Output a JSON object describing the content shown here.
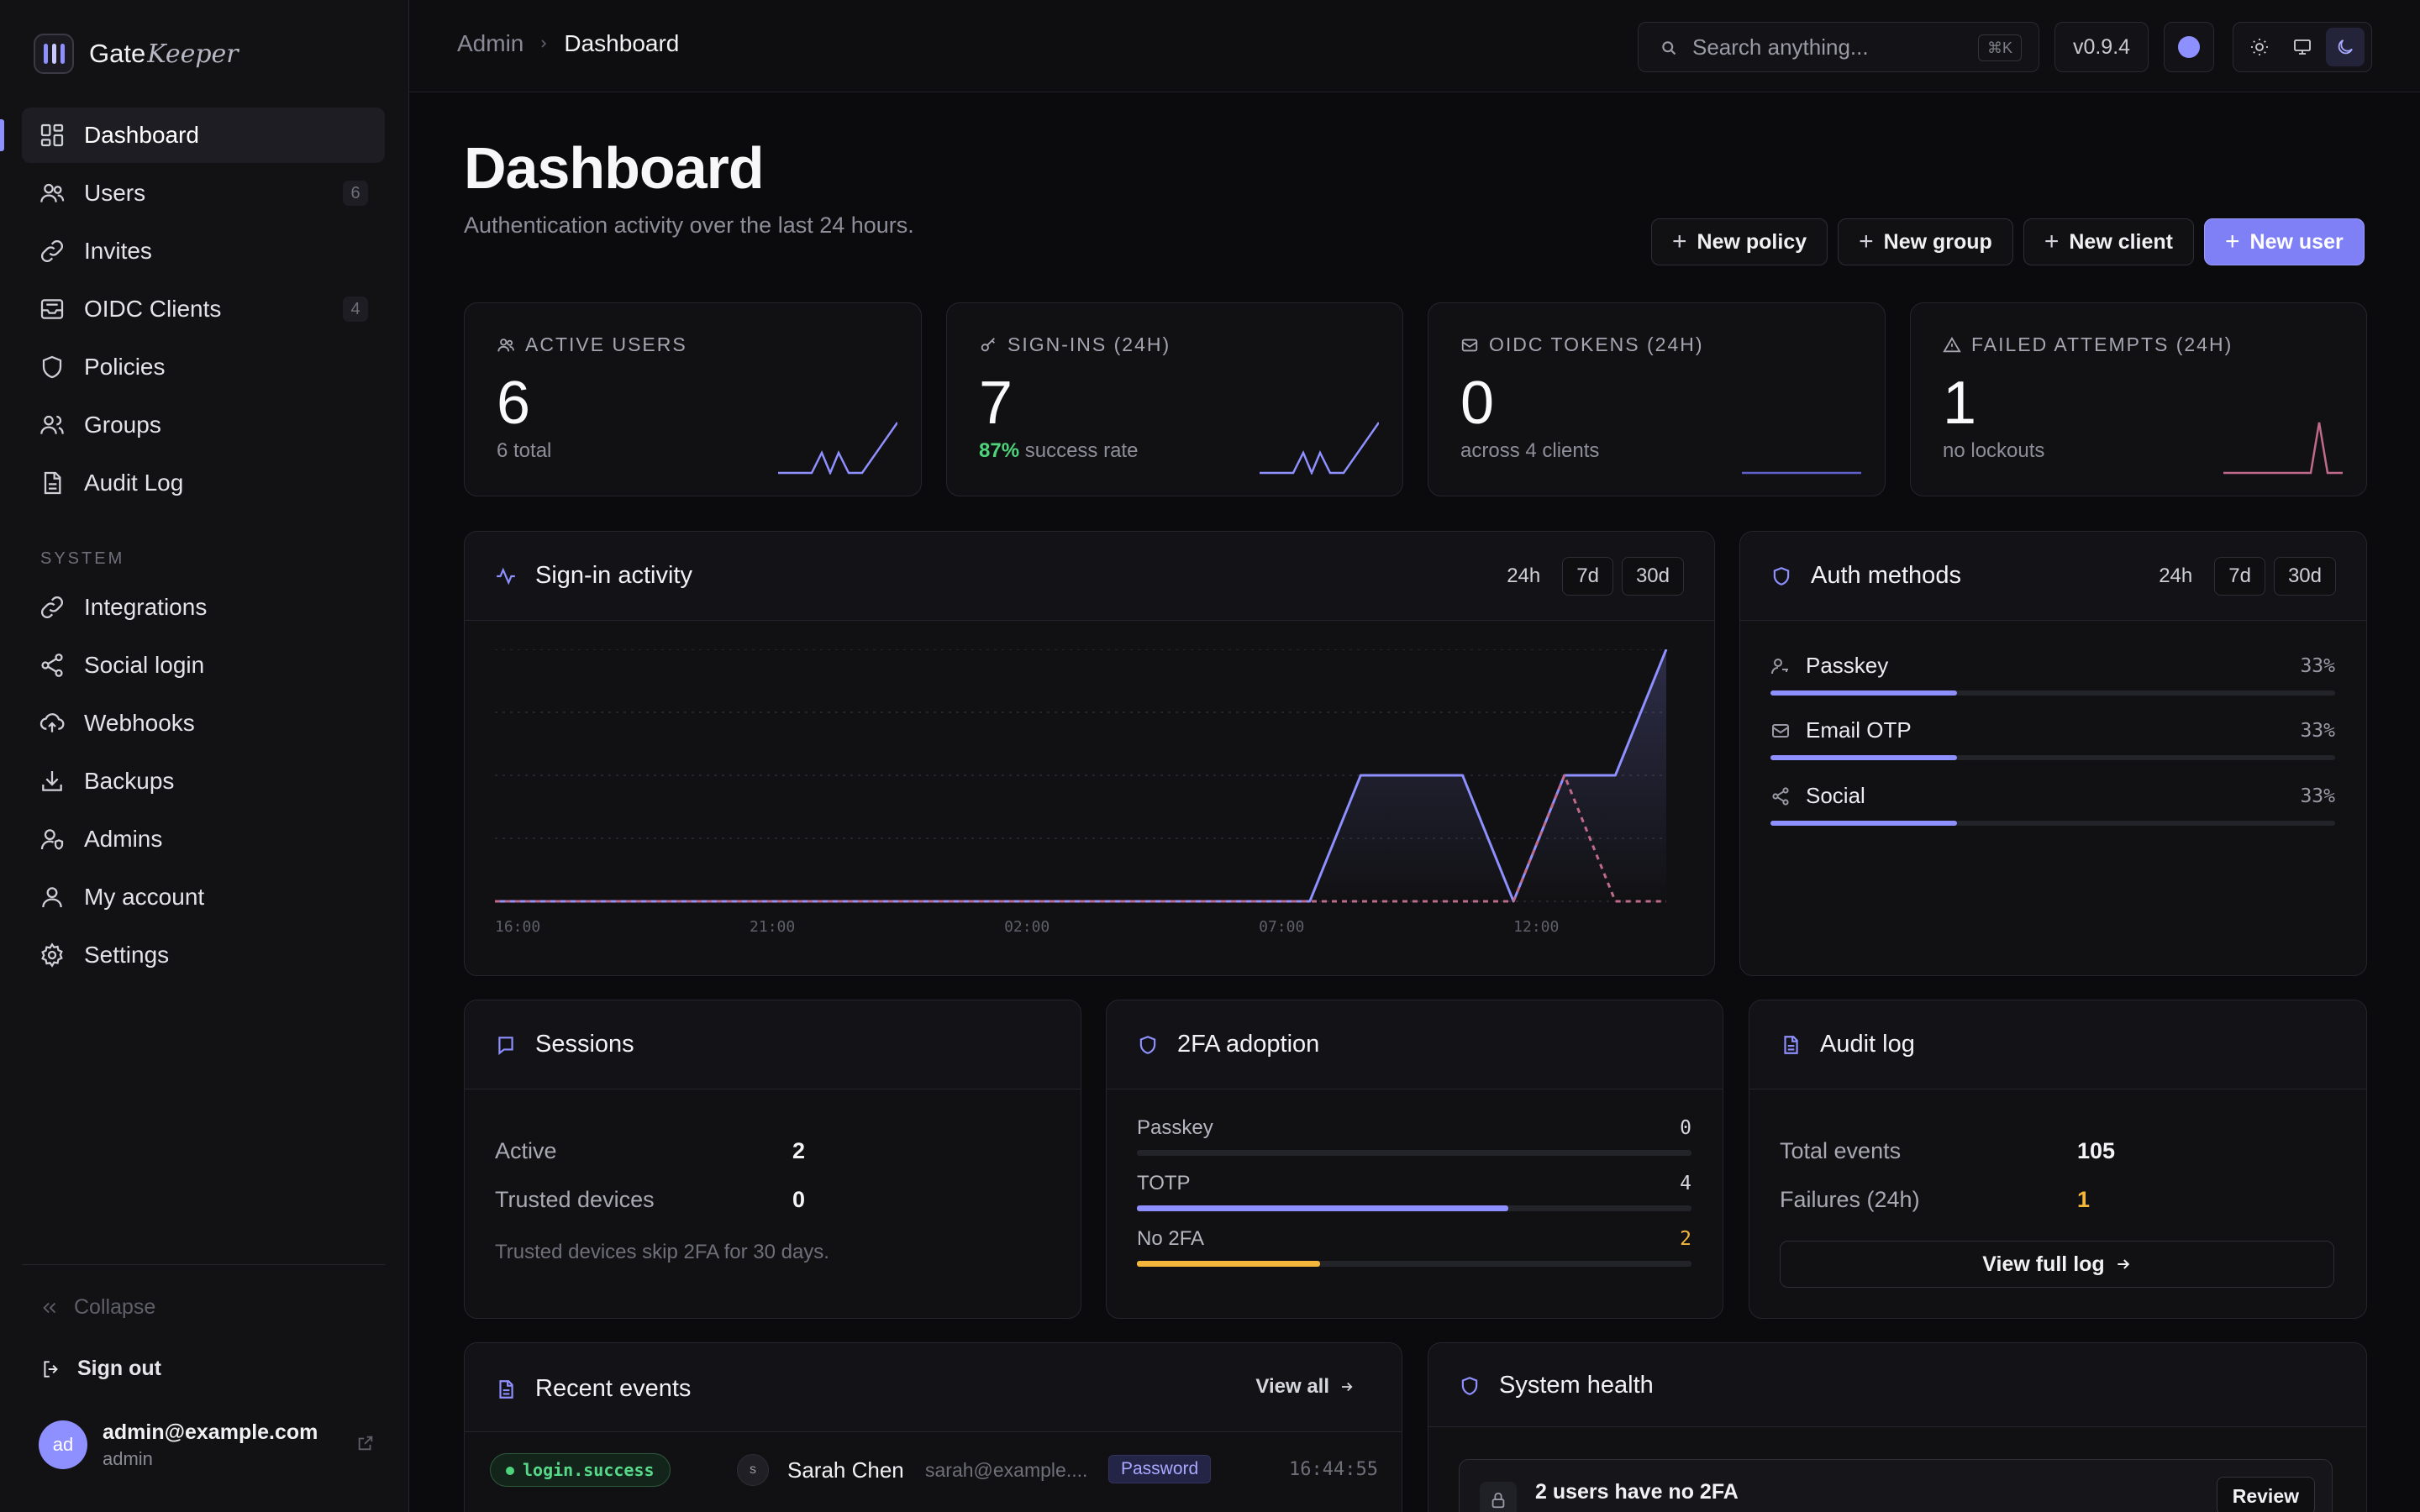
{
  "brand": {
    "name_a": "Gate",
    "name_b": "Keeper"
  },
  "sidebar": {
    "items": [
      {
        "label": "Dashboard",
        "count": ""
      },
      {
        "label": "Users",
        "count": "6"
      },
      {
        "label": "Invites",
        "count": ""
      },
      {
        "label": "OIDC Clients",
        "count": "4"
      },
      {
        "label": "Policies",
        "count": ""
      },
      {
        "label": "Groups",
        "count": ""
      },
      {
        "label": "Audit Log",
        "count": ""
      }
    ],
    "system_label": "SYSTEM",
    "system_items": [
      {
        "label": "Integrations"
      },
      {
        "label": "Social login"
      },
      {
        "label": "Webhooks"
      },
      {
        "label": "Backups"
      },
      {
        "label": "Admins"
      },
      {
        "label": "My account"
      },
      {
        "label": "Settings"
      }
    ],
    "collapse": "Collapse",
    "signout": "Sign out",
    "account": {
      "initials": "ad",
      "email": "admin@example.com",
      "role": "admin"
    }
  },
  "header": {
    "breadcrumb_root": "Admin",
    "breadcrumb_current": "Dashboard",
    "search_placeholder": "Search anything...",
    "search_shortcut": "⌘K",
    "version": "v0.9.4"
  },
  "page": {
    "title": "Dashboard",
    "subtitle": "Authentication activity over the last 24 hours.",
    "actions": [
      "New policy",
      "New group",
      "New client",
      "New user"
    ]
  },
  "stats": [
    {
      "label": "ACTIVE USERS",
      "value": "6",
      "sub": "6 total",
      "sub_highlight": ""
    },
    {
      "label": "SIGN-INS (24H)",
      "value": "7",
      "sub_highlight": "87%",
      "sub": "success rate"
    },
    {
      "label": "OIDC TOKENS (24H)",
      "value": "0",
      "sub": "across 4 clients",
      "sub_highlight": ""
    },
    {
      "label": "FAILED ATTEMPTS (24H)",
      "value": "1",
      "sub": "no lockouts",
      "sub_highlight": ""
    }
  ],
  "signin_activity": {
    "title": "Sign-in activity",
    "ranges": [
      "24h",
      "7d",
      "30d"
    ]
  },
  "chart_data": {
    "type": "line",
    "title": "Sign-in activity",
    "x": [
      "16:00",
      "17:00",
      "18:00",
      "19:00",
      "20:00",
      "21:00",
      "22:00",
      "23:00",
      "00:00",
      "01:00",
      "02:00",
      "03:00",
      "04:00",
      "05:00",
      "06:00",
      "07:00",
      "08:00",
      "09:00",
      "10:00",
      "11:00",
      "12:00",
      "13:00",
      "14:00",
      "15:00"
    ],
    "x_tick_labels": [
      "16:00",
      "21:00",
      "02:00",
      "07:00",
      "12:00"
    ],
    "series": [
      {
        "values": [
          0,
          0,
          0,
          0,
          0,
          0,
          0,
          0,
          0,
          0,
          0,
          0,
          0,
          0,
          0,
          0,
          0,
          2,
          2,
          2,
          0,
          2,
          2,
          4
        ],
        "style": "solid",
        "color": "#8f90ff"
      },
      {
        "values": [
          0,
          0,
          0,
          0,
          0,
          0,
          0,
          0,
          0,
          0,
          0,
          0,
          0,
          0,
          0,
          0,
          0,
          0,
          0,
          0,
          0,
          2,
          0,
          0
        ],
        "style": "dashed",
        "color": "#c06a8a"
      }
    ],
    "ylim": [
      0,
      4
    ],
    "grid": true
  },
  "auth_methods": {
    "title": "Auth methods",
    "ranges": [
      "24h",
      "7d",
      "30d"
    ],
    "items": [
      {
        "label": "Passkey",
        "pct": "33%",
        "value": 0.33
      },
      {
        "label": "Email OTP",
        "pct": "33%",
        "value": 0.33
      },
      {
        "label": "Social",
        "pct": "33%",
        "value": 0.33
      }
    ]
  },
  "sessions": {
    "title": "Sessions",
    "active_label": "Active",
    "active_value": "2",
    "trusted_label": "Trusted devices",
    "trusted_value": "0",
    "note": "Trusted devices skip 2FA for 30 days."
  },
  "tfa": {
    "title": "2FA adoption",
    "rows": [
      {
        "label": "Passkey",
        "value": "0",
        "fraction": 0,
        "color": "#8f90ff"
      },
      {
        "label": "TOTP",
        "value": "4",
        "fraction": 0.67,
        "color": "#8f90ff"
      },
      {
        "label": "No 2FA",
        "value": "2",
        "fraction": 0.33,
        "color": "#f5b73b"
      }
    ]
  },
  "audit": {
    "title": "Audit log",
    "total_label": "Total events",
    "total_value": "105",
    "fail_label": "Failures (24h)",
    "fail_value": "1",
    "view_full": "View full log"
  },
  "recent_events": {
    "title": "Recent events",
    "view_all": "View all",
    "rows": [
      {
        "type": "login.success",
        "initial": "s",
        "name": "Sarah Chen",
        "email": "sarah@example....",
        "method": "Password",
        "time": "16:44:55"
      }
    ]
  },
  "system_health": {
    "title": "System health",
    "alert": "2 users have no 2FA",
    "review": "Review"
  },
  "colors": {
    "accent": "#8f90ff",
    "success": "#4ed47a",
    "warning": "#f5b73b",
    "danger": "#c06a8a"
  }
}
